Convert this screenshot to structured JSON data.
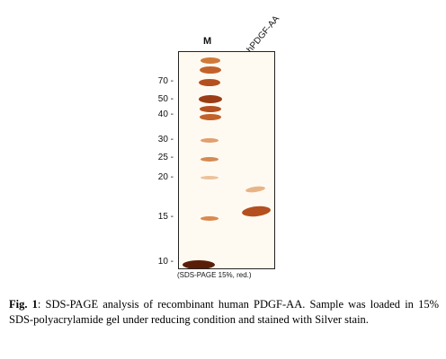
{
  "lanes": {
    "marker": "M",
    "sample": "hPDGF-AA"
  },
  "mw_markers": [
    "70",
    "50",
    "40",
    "30",
    "25",
    "20",
    "15",
    "10"
  ],
  "gel_note": "(SDS-PAGE 15%, red.)",
  "caption": {
    "label": "Fig. 1",
    "text": ": SDS-PAGE analysis of recombinant human PDGF-AA. Sample was loaded in 15% SDS-polyacrylamide gel under reducing condition and stained with Silver stain."
  },
  "colors": {
    "band_dark": "#7a2f10",
    "band_mid": "#c2622a",
    "band_light": "#e8b487",
    "gel_bg": "#fffaf1"
  }
}
